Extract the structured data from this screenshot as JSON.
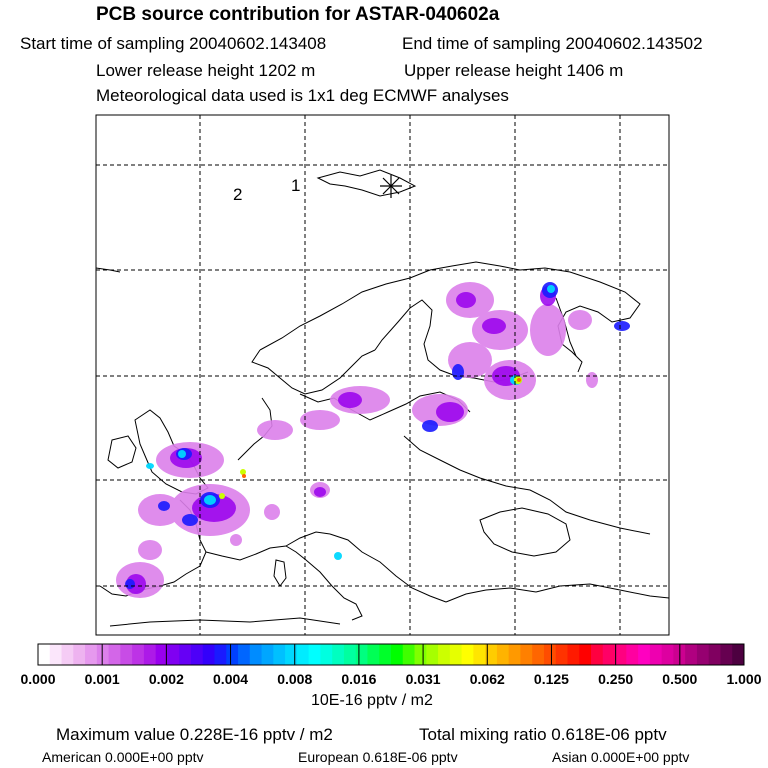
{
  "header": {
    "title": "PCB source contribution for ASTAR-040602a",
    "start_time": "Start time of sampling 20040602.143408",
    "end_time": "End time of sampling 20040602.143502",
    "lower_height": "Lower release height 1202 m",
    "upper_height": "Upper release height 1406 m",
    "met_data": "Meteorological data used is 1x1 deg ECMWF analyses"
  },
  "map": {
    "markers": [
      {
        "label": "2"
      },
      {
        "label": "1"
      }
    ],
    "release_symbol": "star-cross-icon"
  },
  "colorbar": {
    "tick_labels": [
      "0.000",
      "0.001",
      "0.002",
      "0.004",
      "0.008",
      "0.016",
      "0.031",
      "0.062",
      "0.125",
      "0.250",
      "0.500",
      "1.000"
    ],
    "colors": [
      "#ffffff",
      "#fbe6fb",
      "#f5ccf5",
      "#eeb3f0",
      "#e699ee",
      "#dc80eb",
      "#d366e8",
      "#c84ce6",
      "#bd33e6",
      "#ad1ae8",
      "#9900ee",
      "#8000f2",
      "#6600f5",
      "#4d00f8",
      "#3300fb",
      "#1a1aff",
      "#0040ff",
      "#0066ff",
      "#008cff",
      "#00a6ff",
      "#00c0ff",
      "#00d8ff",
      "#00ecff",
      "#00ffff",
      "#00ffe0",
      "#00ffc0",
      "#00ffa0",
      "#00ff80",
      "#00ff55",
      "#00ff2a",
      "#00ff00",
      "#40ff00",
      "#80ff00",
      "#a6ff00",
      "#ccff00",
      "#e6ff00",
      "#ffff00",
      "#ffe600",
      "#ffcc00",
      "#ffb300",
      "#ff9900",
      "#ff8000",
      "#ff6600",
      "#ff4d00",
      "#ff3300",
      "#ff1a00",
      "#ff0000",
      "#ff0040",
      "#ff0066",
      "#ff0080",
      "#ff00a0",
      "#ff00c0",
      "#ee00b0",
      "#dd00a0",
      "#cc0090",
      "#b00080",
      "#960070",
      "#800060",
      "#660050",
      "#4d0040"
    ],
    "units": "10E-16 pptv / m2"
  },
  "footer": {
    "max_value": "Maximum value  0.228E-16 pptv / m2",
    "total_mixing": "Total mixing ratio  0.618E-06 pptv",
    "american": "American  0.000E+00 pptv",
    "european": "European  0.618E-06 pptv",
    "asian": "Asian  0.000E+00 pptv"
  }
}
